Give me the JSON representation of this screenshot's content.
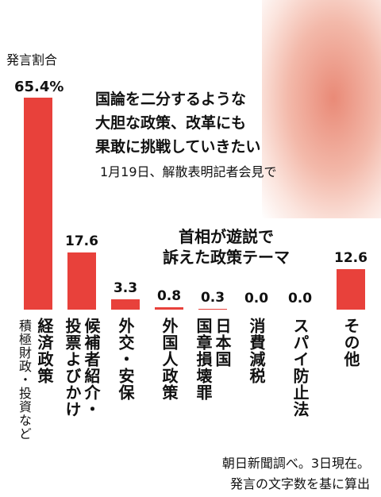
{
  "chart_data": {
    "type": "bar",
    "title": "首相が遊説で\n訴えた政策テーマ",
    "value_caption": "発言割合",
    "quote": [
      "国論を二分するような",
      "大胆な政策、改革にも",
      "果敢に挑戦していきたい"
    ],
    "quote_source": "1月19日、解散表明記者会見で",
    "categories": [
      "経済政策",
      "候補者紹介・\n投票よびかけ",
      "外交・安保",
      "外国人政策",
      "日本国\n国章損壊罪",
      "消費減税",
      "スパイ防止法",
      "その他"
    ],
    "category_note": "積極財政・投資など",
    "values": [
      65.4,
      17.6,
      3.3,
      0.8,
      0.3,
      0.0,
      0.0,
      12.6
    ],
    "value_labels": [
      "65.4%",
      "17.6",
      "3.3",
      "0.8",
      "0.3",
      "0.0",
      "0.0",
      "12.6"
    ],
    "color": "#e8413b",
    "notes": [
      "朝日新聞調べ。3日現在。",
      "発言の文字数を基に算出"
    ]
  }
}
